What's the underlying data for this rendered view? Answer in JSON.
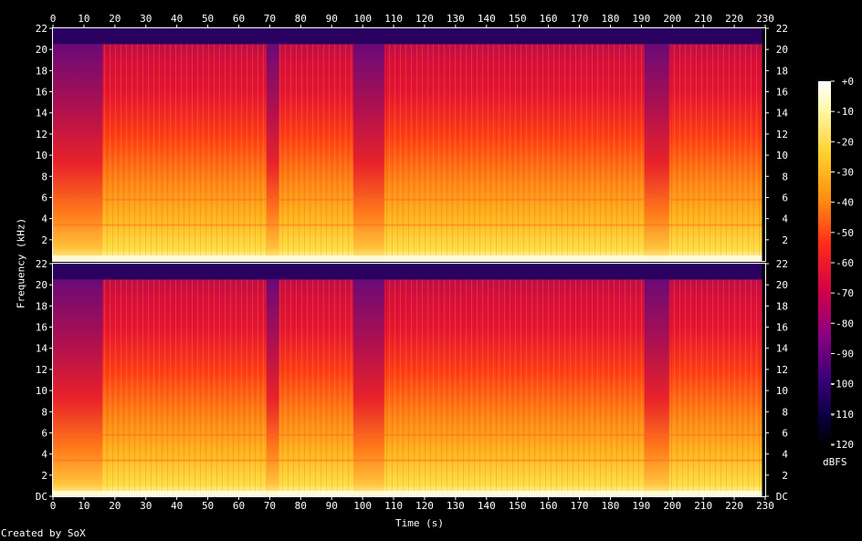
{
  "chart_data": {
    "type": "heatmap",
    "title": "",
    "xlabel": "Time (s)",
    "ylabel": "Frequency (kHz)",
    "x_ticks": [
      0,
      10,
      20,
      30,
      40,
      50,
      60,
      70,
      80,
      90,
      100,
      110,
      120,
      130,
      140,
      150,
      160,
      170,
      180,
      190,
      200,
      210,
      220,
      230
    ],
    "xlim": [
      0,
      230
    ],
    "y_ticks_top": [
      "2",
      "4",
      "6",
      "8",
      "10",
      "12",
      "14",
      "16",
      "18",
      "20",
      "22"
    ],
    "y_ticks_bottom": [
      "DC",
      "2",
      "4",
      "6",
      "8",
      "10",
      "12",
      "14",
      "16",
      "18",
      "20",
      "22"
    ],
    "ylim_khz": [
      0,
      22
    ],
    "channels": 2,
    "duration_s": 229,
    "bandwidth_limit_khz": 20.5,
    "quiet_sections_s": [
      [
        0,
        16
      ],
      [
        69,
        73
      ],
      [
        97,
        107
      ],
      [
        191,
        199
      ]
    ],
    "colorbar": {
      "label": "dBFS",
      "ticks": [
        "+0",
        "-10",
        "-20",
        "-30",
        "-40",
        "-50",
        "-60",
        "-70",
        "-80",
        "-90",
        "-100",
        "-110",
        "-120"
      ],
      "range_db": [
        -120,
        0
      ]
    },
    "credit": "Created by SoX"
  },
  "colors": {
    "background": "#000000",
    "text": "#ffffff"
  }
}
